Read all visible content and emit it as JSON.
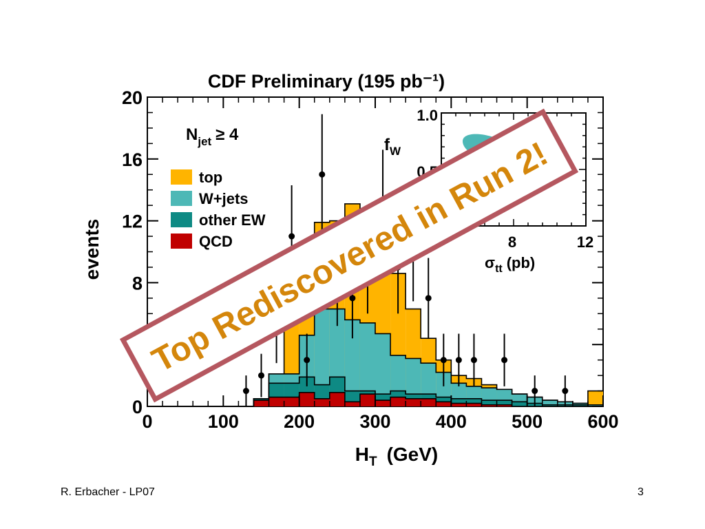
{
  "slide": {
    "footer_left": "R. Erbacher - LP07",
    "page_number": "3"
  },
  "banner": {
    "text": "Top Rediscovered in Run 2!",
    "text_color": "#d4860b",
    "border_color": "#b5575f"
  },
  "chart_data": {
    "type": "bar",
    "title": "CDF Preliminary (195 pb⁻¹)",
    "xlabel": "H_T (GeV)",
    "ylabel": "events",
    "xlim": [
      0,
      600
    ],
    "ylim": [
      0,
      20
    ],
    "x_ticks": [
      0,
      100,
      200,
      300,
      400,
      500,
      600
    ],
    "y_ticks": [
      0,
      4,
      8,
      12,
      16,
      20
    ],
    "y_tick_labels_shown": [
      "0",
      "",
      "8",
      "12",
      "16",
      "20"
    ],
    "bin_edges": [
      0,
      20,
      40,
      60,
      80,
      100,
      120,
      140,
      160,
      180,
      200,
      220,
      240,
      260,
      280,
      300,
      320,
      340,
      360,
      380,
      400,
      420,
      440,
      460,
      480,
      500,
      520,
      540,
      560,
      580,
      600
    ],
    "stack_note": "cumulative stacked totals per bin, bottom to top: QCD, other EW, W+jets, top",
    "stacked_series": [
      {
        "name": "QCD",
        "color": "#c00000",
        "values": [
          0,
          0,
          0,
          0,
          0,
          0,
          0,
          0.4,
          0.6,
          0.6,
          0.9,
          0.5,
          0.9,
          0.3,
          0.8,
          0.4,
          0.6,
          0.5,
          0.5,
          0.3,
          0.2,
          0.2,
          0.1,
          0.1,
          0,
          0,
          0,
          0,
          0,
          0
        ]
      },
      {
        "name": "other EW",
        "color": "#0e8a84",
        "values": [
          0,
          0,
          0,
          0,
          0,
          0,
          0,
          0.5,
          1.5,
          1.5,
          1.9,
          1.4,
          1.9,
          1.0,
          1.0,
          0.8,
          1.0,
          0.8,
          0.8,
          0.6,
          0.5,
          0.5,
          0.4,
          0.4,
          0.3,
          0.2,
          0.1,
          0.1,
          0.1,
          0
        ]
      },
      {
        "name": "W+jets",
        "color": "#4db8b6",
        "values": [
          0,
          0,
          0,
          0,
          0,
          0,
          0,
          0.5,
          2.1,
          2.1,
          4.6,
          6.3,
          6.3,
          5.6,
          5.4,
          4.7,
          3.3,
          3.1,
          2.8,
          2.2,
          1.5,
          1.3,
          1.2,
          1.1,
          0.8,
          0.6,
          0.4,
          0.3,
          0.2,
          0.1
        ]
      },
      {
        "name": "top",
        "color": "#ffb400",
        "values": [
          0,
          0,
          0,
          0,
          0,
          0,
          0,
          0.5,
          2.1,
          5.5,
          8.0,
          11.9,
          12.0,
          13.1,
          11.4,
          10.5,
          8.6,
          6.3,
          4.4,
          3.0,
          2.0,
          1.8,
          1.4,
          1.1,
          0.8,
          0.6,
          0.4,
          0.3,
          0.2,
          1.0
        ]
      }
    ],
    "data_points": {
      "name": "data",
      "x": [
        130,
        150,
        170,
        190,
        210,
        230,
        250,
        270,
        290,
        310,
        330,
        350,
        370,
        390,
        410,
        430,
        470,
        510,
        550
      ],
      "y": [
        1,
        2,
        5,
        11,
        3,
        15,
        8,
        7,
        9,
        13,
        9,
        10,
        7,
        3,
        3,
        3,
        3,
        1,
        1
      ],
      "err": [
        1.0,
        1.4,
        2.2,
        3.3,
        1.7,
        3.9,
        2.8,
        2.6,
        3.0,
        3.6,
        3.0,
        3.2,
        2.6,
        1.7,
        1.7,
        1.7,
        1.7,
        1.0,
        1.0
      ]
    },
    "annotation": "N_jet ≥ 4",
    "legend": {
      "placement": "top-left",
      "entries": [
        "top",
        "W+jets",
        "other EW",
        "QCD"
      ]
    },
    "inset": {
      "type": "contour",
      "xlabel": "σ_tt (pb)",
      "ylabel": "f_W",
      "ylim": [
        0,
        1.0
      ],
      "x_ticks_shown": [
        "8",
        "12"
      ],
      "y_ticks_shown": [
        "0.5",
        "1.0"
      ],
      "contour_colors": [
        "#4db8b6",
        "#0e8a84"
      ]
    }
  }
}
